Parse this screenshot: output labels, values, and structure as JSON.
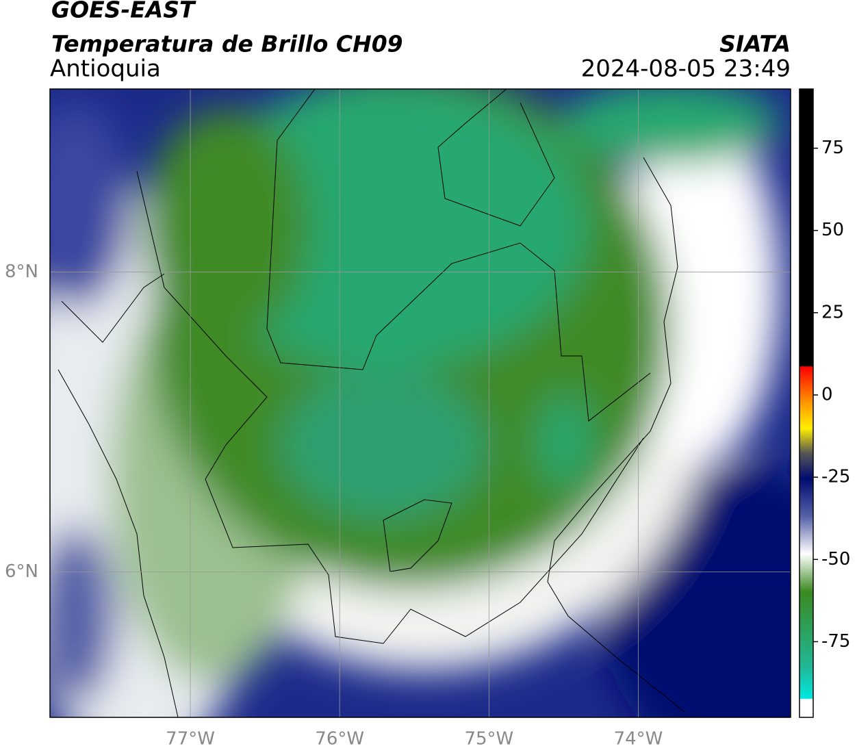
{
  "header": {
    "title": "GOES-EAST",
    "subtitle": "Temperatura de Brillo CH09",
    "region": "Antioquia",
    "source": "SIATA",
    "datetime": "2024-08-05 23:49"
  },
  "map": {
    "lonlim": [
      -77.94,
      -72.98
    ],
    "latlim": [
      5.03,
      9.22
    ],
    "lon_ticks": [
      {
        "value": -77,
        "label": "77°W"
      },
      {
        "value": -76,
        "label": "76°W"
      },
      {
        "value": -75,
        "label": "75°W"
      },
      {
        "value": -74,
        "label": "74°W"
      }
    ],
    "lat_ticks": [
      {
        "value": 8,
        "label": "8°N"
      },
      {
        "value": 6,
        "label": "6°N"
      }
    ]
  },
  "colorbar": {
    "lim": [
      -98,
      93
    ],
    "ticks": [
      75,
      50,
      25,
      0,
      -25,
      -50,
      -75
    ]
  }
}
